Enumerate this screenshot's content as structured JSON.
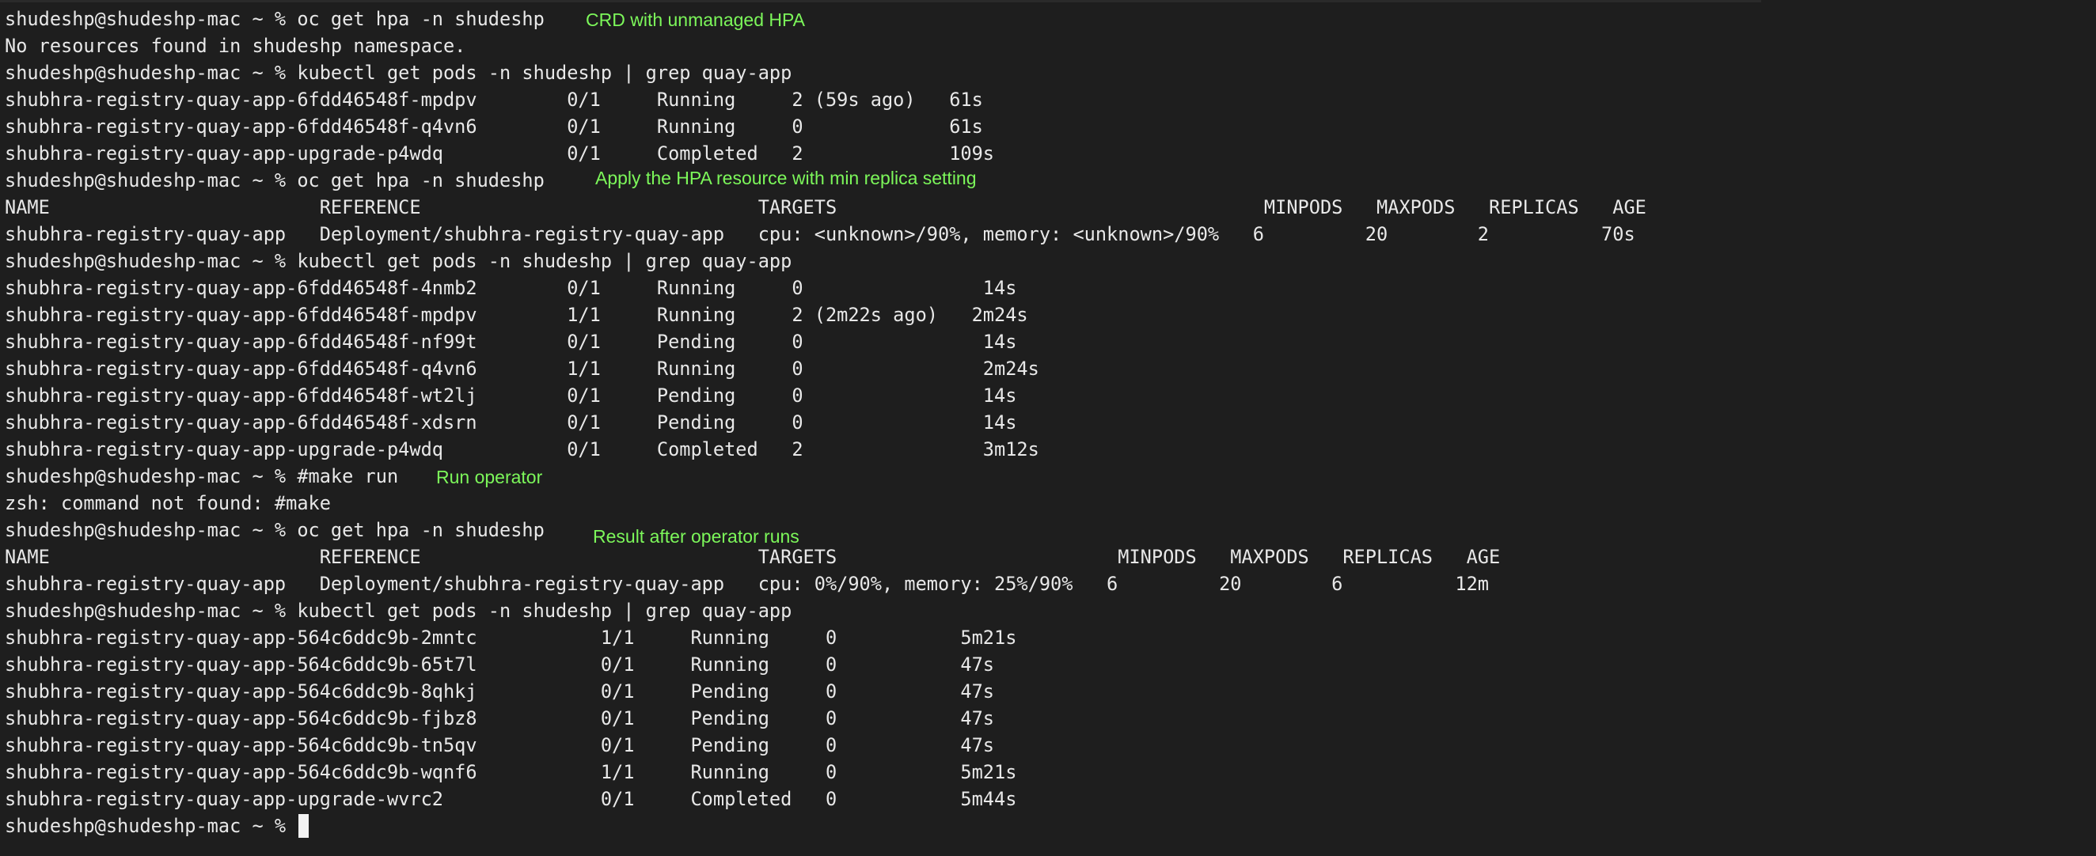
{
  "terminal": {
    "lines": [
      "shudeshp@shudeshp-mac ~ % oc get hpa -n shudeshp",
      "No resources found in shudeshp namespace.",
      "shudeshp@shudeshp-mac ~ % kubectl get pods -n shudeshp | grep quay-app",
      "shubhra-registry-quay-app-6fdd46548f-mpdpv        0/1     Running     2 (59s ago)   61s",
      "shubhra-registry-quay-app-6fdd46548f-q4vn6        0/1     Running     0             61s",
      "shubhra-registry-quay-app-upgrade-p4wdq           0/1     Completed   2             109s",
      "shudeshp@shudeshp-mac ~ % oc get hpa -n shudeshp",
      "NAME                        REFERENCE                              TARGETS                                      MINPODS   MAXPODS   REPLICAS   AGE",
      "shubhra-registry-quay-app   Deployment/shubhra-registry-quay-app   cpu: <unknown>/90%, memory: <unknown>/90%   6         20        2          70s",
      "shudeshp@shudeshp-mac ~ % kubectl get pods -n shudeshp | grep quay-app",
      "shubhra-registry-quay-app-6fdd46548f-4nmb2        0/1     Running     0                14s",
      "shubhra-registry-quay-app-6fdd46548f-mpdpv        1/1     Running     2 (2m22s ago)   2m24s",
      "shubhra-registry-quay-app-6fdd46548f-nf99t        0/1     Pending     0                14s",
      "shubhra-registry-quay-app-6fdd46548f-q4vn6        1/1     Running     0                2m24s",
      "shubhra-registry-quay-app-6fdd46548f-wt2lj        0/1     Pending     0                14s",
      "shubhra-registry-quay-app-6fdd46548f-xdsrn        0/1     Pending     0                14s",
      "shubhra-registry-quay-app-upgrade-p4wdq           0/1     Completed   2                3m12s",
      "shudeshp@shudeshp-mac ~ % #make run",
      "zsh: command not found: #make",
      "shudeshp@shudeshp-mac ~ % oc get hpa -n shudeshp",
      "NAME                        REFERENCE                              TARGETS                         MINPODS   MAXPODS   REPLICAS   AGE",
      "shubhra-registry-quay-app   Deployment/shubhra-registry-quay-app   cpu: 0%/90%, memory: 25%/90%   6         20        6          12m",
      "shudeshp@shudeshp-mac ~ % kubectl get pods -n shudeshp | grep quay-app",
      "shubhra-registry-quay-app-564c6ddc9b-2mntc           1/1     Running     0           5m21s",
      "shubhra-registry-quay-app-564c6ddc9b-65t7l           0/1     Running     0           47s",
      "shubhra-registry-quay-app-564c6ddc9b-8qhkj           0/1     Pending     0           47s",
      "shubhra-registry-quay-app-564c6ddc9b-fjbz8           0/1     Pending     0           47s",
      "shubhra-registry-quay-app-564c6ddc9b-tn5qv           0/1     Pending     0           47s",
      "shubhra-registry-quay-app-564c6ddc9b-wqnf6           1/1     Running     0           5m21s",
      "shubhra-registry-quay-app-upgrade-wvrc2              0/1     Completed   0           5m44s",
      "shudeshp@shudeshp-mac ~ % "
    ],
    "annotations": [
      "CRD with unmanaged HPA",
      "Apply the HPA resource with min replica setting",
      "Run operator",
      "Result after operator runs"
    ],
    "colors": {
      "background": "#1e1e1e",
      "text": "#e8e8e8",
      "annotation": "#7cf75a",
      "cursor": "#f2f2f2"
    }
  }
}
